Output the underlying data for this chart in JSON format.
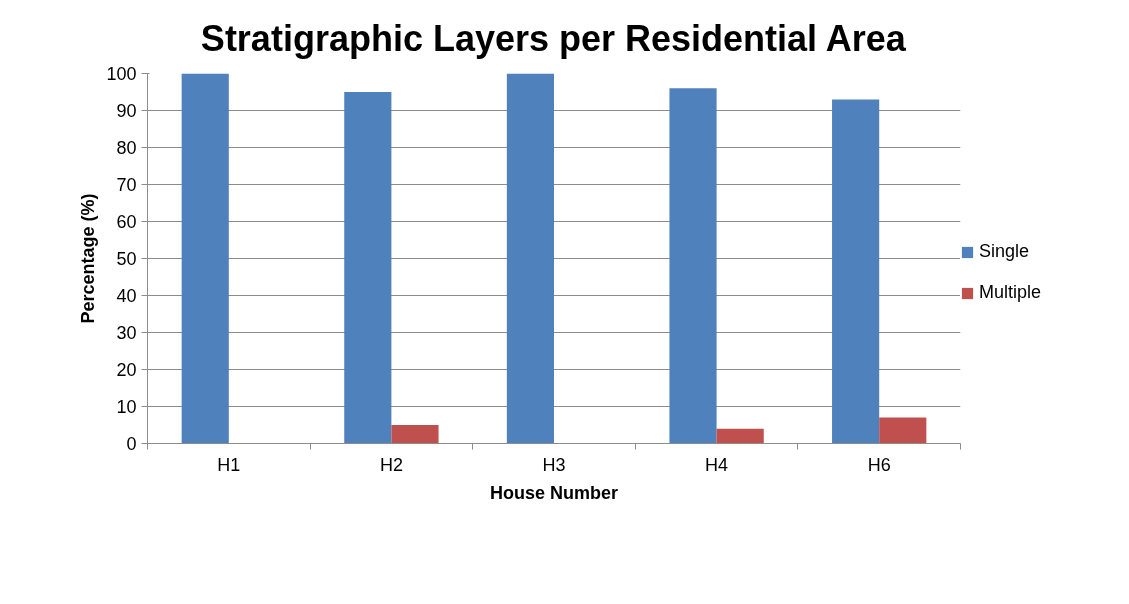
{
  "chart_data": {
    "type": "bar",
    "title": "Stratigraphic Layers per Residential Area",
    "xlabel": "House Number",
    "ylabel": "Percentage (%)",
    "categories": [
      "H1",
      "H2",
      "H3",
      "H4",
      "H6"
    ],
    "series": [
      {
        "name": "Single",
        "color": "#4f81bd",
        "values": [
          100,
          95,
          100,
          96,
          93
        ]
      },
      {
        "name": "Multiple",
        "color": "#c0504d",
        "values": [
          0,
          5,
          0,
          4,
          7
        ]
      }
    ],
    "ylim": [
      0,
      100
    ],
    "yticks": [
      0,
      10,
      20,
      30,
      40,
      50,
      60,
      70,
      80,
      90,
      100
    ],
    "grid": "y",
    "legend": "right"
  }
}
